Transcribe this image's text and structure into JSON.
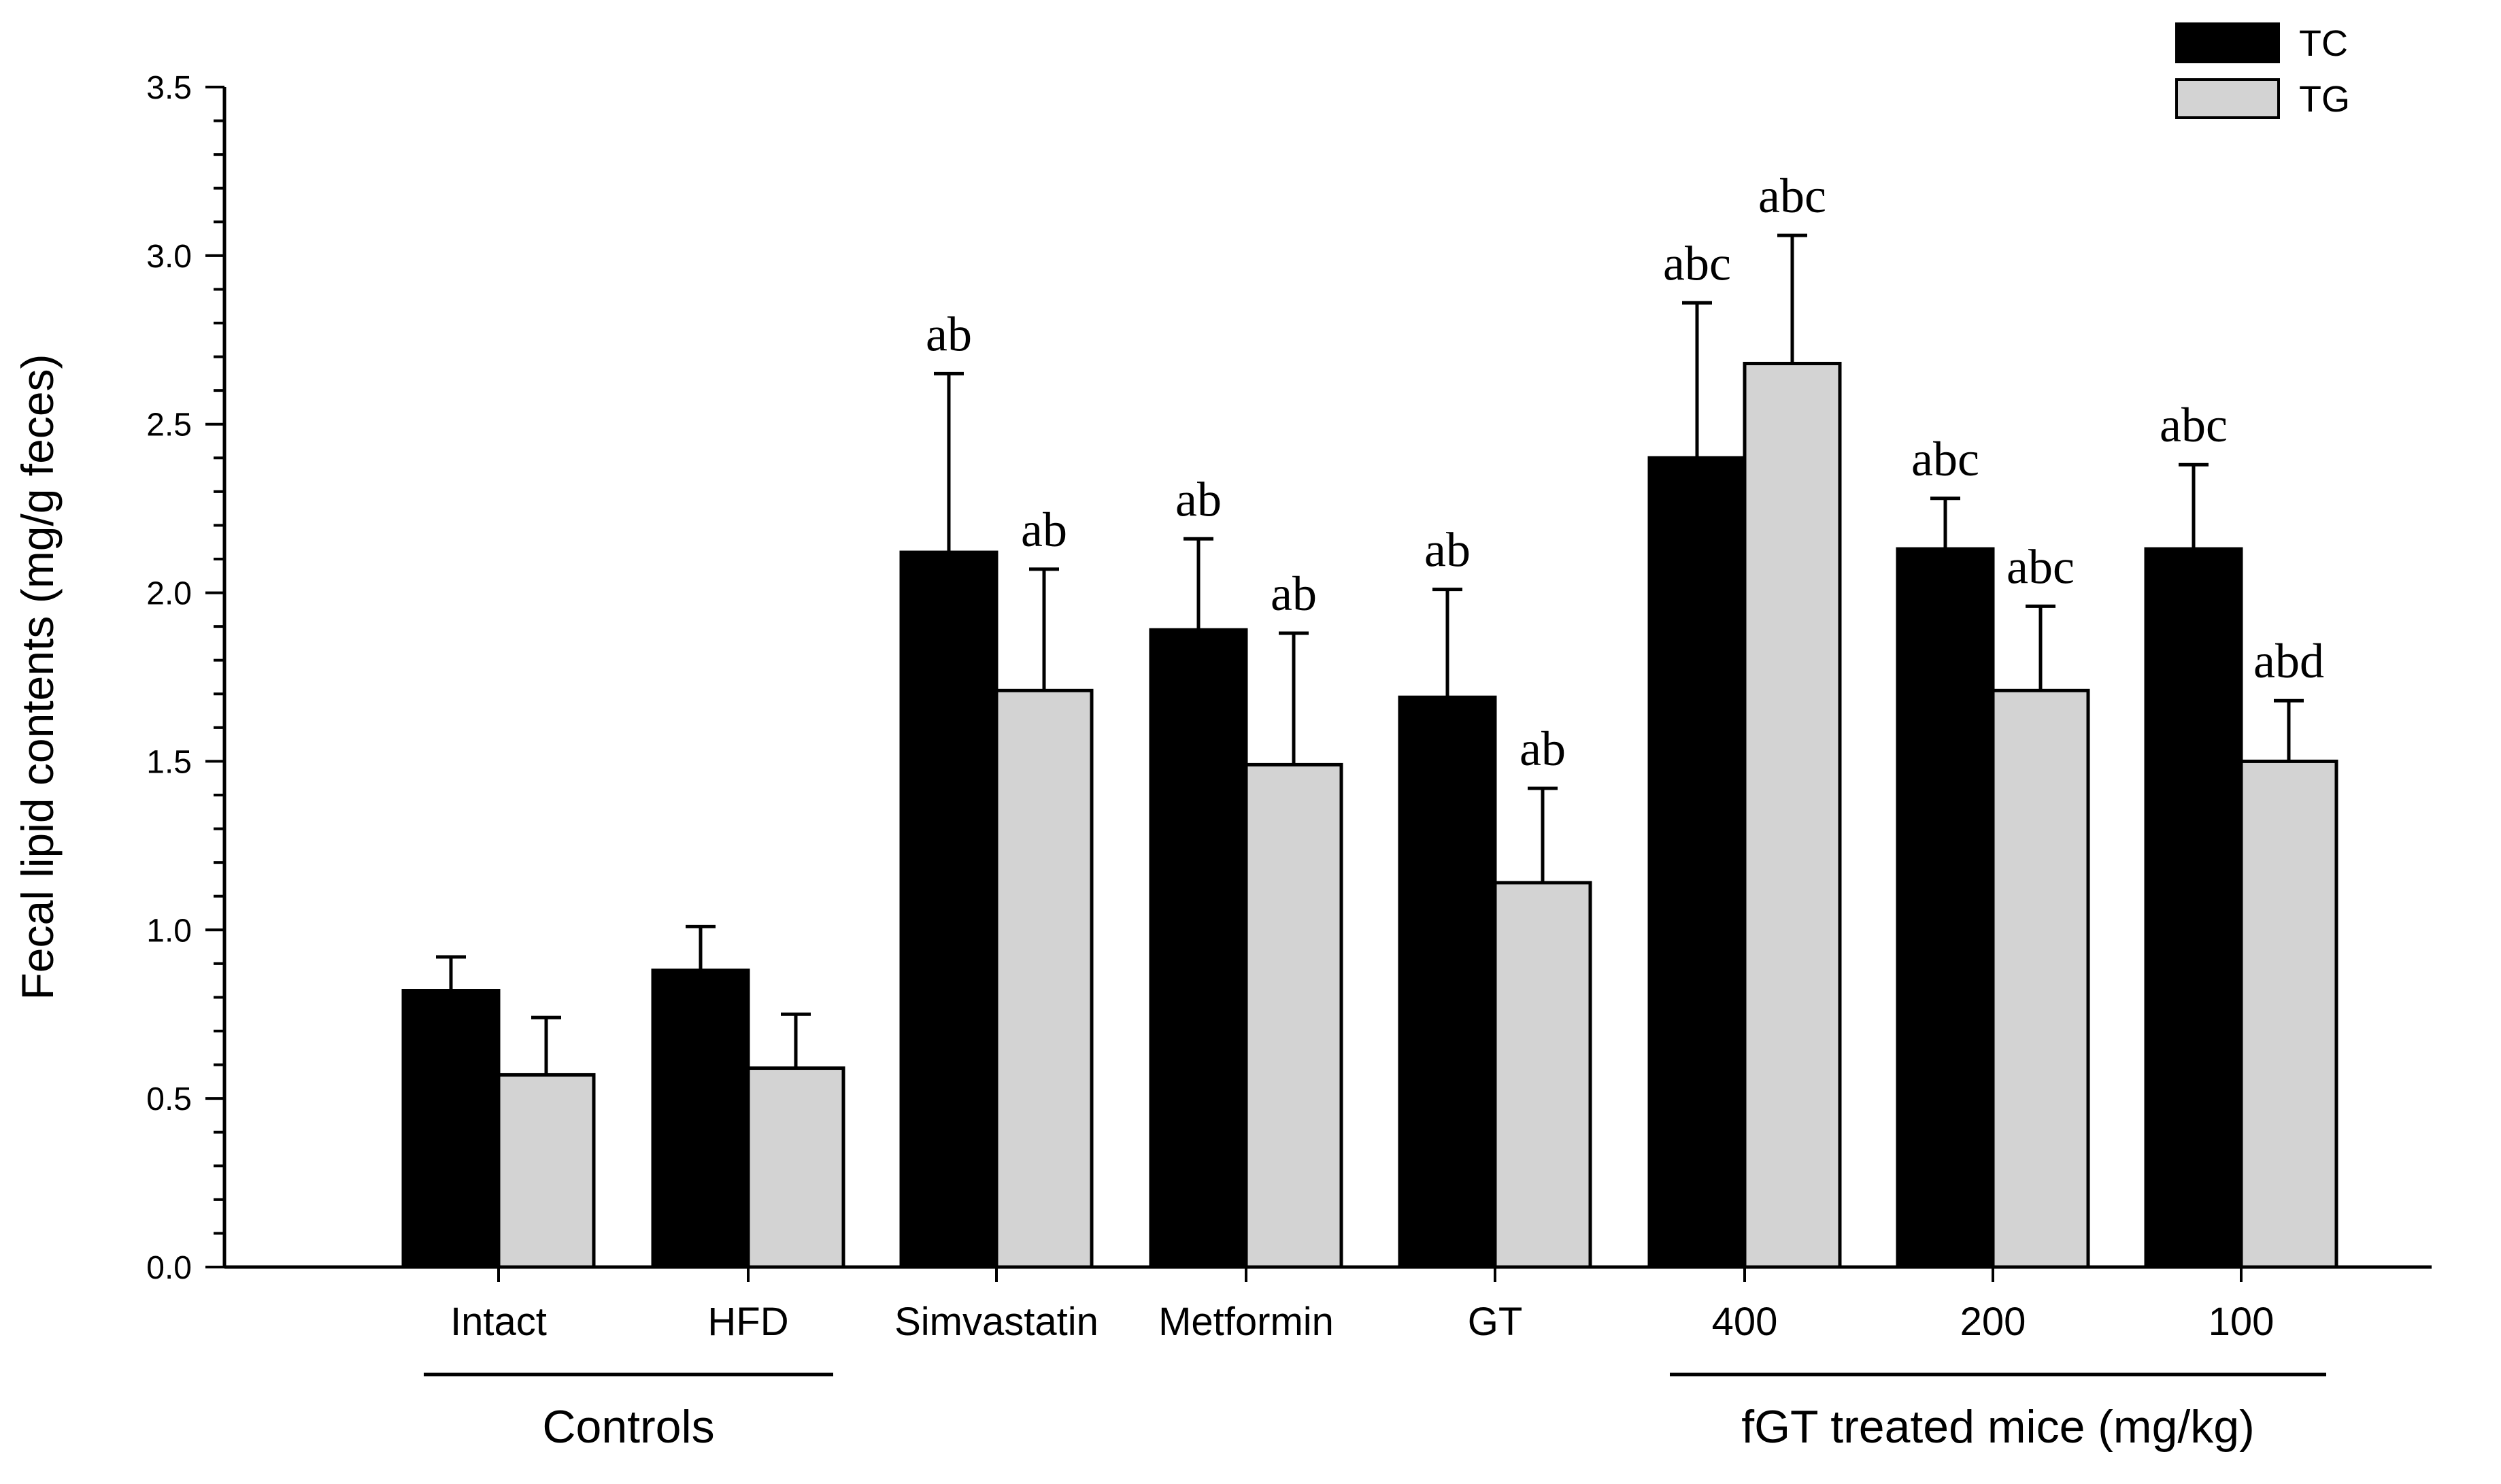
{
  "chart_data": {
    "type": "bar",
    "title": "",
    "xlabel": "",
    "ylabel": "Fecal lipid contents (mg/g feces)",
    "ylim": [
      0,
      3.5
    ],
    "yticks": [
      "0.0",
      "0.5",
      "1.0",
      "1.5",
      "2.0",
      "2.5",
      "3.0",
      "3.5"
    ],
    "categories": [
      "Intact",
      "HFD",
      "Simvastatin",
      "Metformin",
      "GT",
      "400",
      "200",
      "100"
    ],
    "series": [
      {
        "name": "TC",
        "color": "#000000",
        "values": [
          0.82,
          0.88,
          2.12,
          1.89,
          1.69,
          2.4,
          2.13,
          2.13
        ],
        "errors": [
          0.1,
          0.13,
          0.53,
          0.27,
          0.32,
          0.46,
          0.15,
          0.25
        ],
        "annotations": [
          "",
          "",
          "ab",
          "ab",
          "ab",
          "abc",
          "abc",
          "abc"
        ]
      },
      {
        "name": "TG",
        "color": "#d3d3d3",
        "values": [
          0.57,
          0.59,
          1.71,
          1.49,
          1.14,
          2.68,
          1.71,
          1.5
        ],
        "errors": [
          0.17,
          0.16,
          0.36,
          0.39,
          0.28,
          0.38,
          0.25,
          0.18
        ],
        "annotations": [
          "",
          "",
          "ab",
          "ab",
          "ab",
          "abc",
          "abc",
          "abd"
        ]
      }
    ],
    "groups": [
      {
        "label": "Controls",
        "from": 0,
        "to": 1
      },
      {
        "label": "fGT treated mice (mg/kg)",
        "from": 5,
        "to": 7
      }
    ],
    "legend": {
      "position": "top-right",
      "entries": [
        "TC",
        "TG"
      ]
    },
    "grid": false
  }
}
